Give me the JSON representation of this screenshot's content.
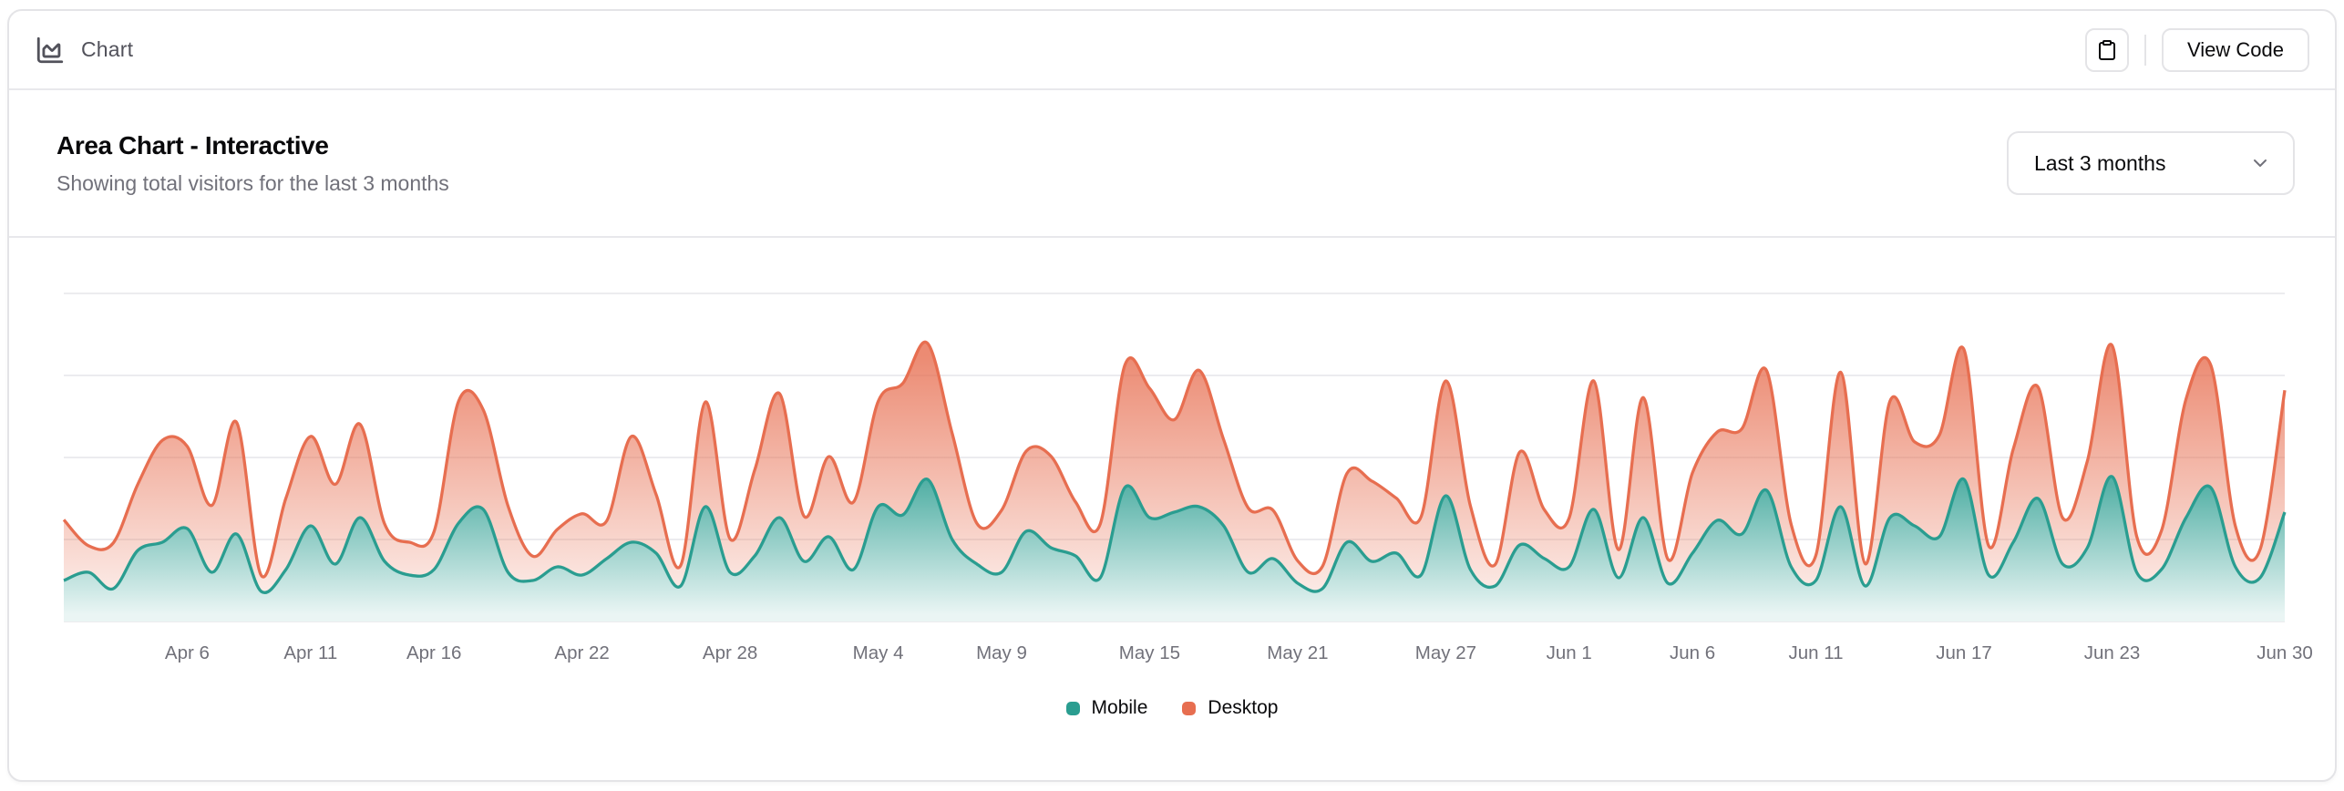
{
  "header": {
    "label": "Chart",
    "copy_button": "clipboard-icon",
    "view_code_label": "View Code"
  },
  "card": {
    "title": "Area Chart - Interactive",
    "description": "Showing total visitors for the last 3 months"
  },
  "controls": {
    "range_select_value": "Last 3 months"
  },
  "colors": {
    "mobile": "#2a9d90",
    "desktop": "#e76e50",
    "grid": "#ececef",
    "border": "#e4e4e7",
    "muted_text": "#71717a",
    "text": "#09090b"
  },
  "icons": [
    "chart-area-icon",
    "clipboard-icon",
    "chevron-down-icon"
  ],
  "chart_data": {
    "type": "area",
    "stacked": true,
    "title": "Area Chart - Interactive",
    "xlabel": "",
    "ylabel": "",
    "ylim": [
      0,
      1200
    ],
    "y_gridlines": [
      0,
      300,
      600,
      900,
      1200
    ],
    "grid": true,
    "legend_position": "bottom",
    "x": [
      "2024-04-01",
      "2024-04-02",
      "2024-04-03",
      "2024-04-04",
      "2024-04-05",
      "2024-04-06",
      "2024-04-07",
      "2024-04-08",
      "2024-04-09",
      "2024-04-10",
      "2024-04-11",
      "2024-04-12",
      "2024-04-13",
      "2024-04-14",
      "2024-04-15",
      "2024-04-16",
      "2024-04-17",
      "2024-04-18",
      "2024-04-19",
      "2024-04-20",
      "2024-04-21",
      "2024-04-22",
      "2024-04-23",
      "2024-04-24",
      "2024-04-25",
      "2024-04-26",
      "2024-04-27",
      "2024-04-28",
      "2024-04-29",
      "2024-04-30",
      "2024-05-01",
      "2024-05-02",
      "2024-05-03",
      "2024-05-04",
      "2024-05-05",
      "2024-05-06",
      "2024-05-07",
      "2024-05-08",
      "2024-05-09",
      "2024-05-10",
      "2024-05-11",
      "2024-05-12",
      "2024-05-13",
      "2024-05-14",
      "2024-05-15",
      "2024-05-16",
      "2024-05-17",
      "2024-05-18",
      "2024-05-19",
      "2024-05-20",
      "2024-05-21",
      "2024-05-22",
      "2024-05-23",
      "2024-05-24",
      "2024-05-25",
      "2024-05-26",
      "2024-05-27",
      "2024-05-28",
      "2024-05-29",
      "2024-05-30",
      "2024-05-31",
      "2024-06-01",
      "2024-06-02",
      "2024-06-03",
      "2024-06-04",
      "2024-06-05",
      "2024-06-06",
      "2024-06-07",
      "2024-06-08",
      "2024-06-09",
      "2024-06-10",
      "2024-06-11",
      "2024-06-12",
      "2024-06-13",
      "2024-06-14",
      "2024-06-15",
      "2024-06-16",
      "2024-06-17",
      "2024-06-18",
      "2024-06-19",
      "2024-06-20",
      "2024-06-21",
      "2024-06-22",
      "2024-06-23",
      "2024-06-24",
      "2024-06-25",
      "2024-06-26",
      "2024-06-27",
      "2024-06-28",
      "2024-06-29",
      "2024-06-30"
    ],
    "series": [
      {
        "name": "Mobile",
        "color": "#2a9d90",
        "values": [
          150,
          180,
          120,
          260,
          290,
          340,
          180,
          320,
          110,
          190,
          350,
          210,
          380,
          220,
          170,
          190,
          360,
          410,
          180,
          150,
          200,
          170,
          230,
          290,
          250,
          130,
          420,
          180,
          240,
          380,
          220,
          310,
          190,
          420,
          390,
          520,
          300,
          210,
          180,
          330,
          270,
          240,
          160,
          490,
          380,
          400,
          420,
          350,
          180,
          230,
          140,
          120,
          290,
          220,
          250,
          170,
          460,
          190,
          130,
          280,
          230,
          200,
          410,
          160,
          380,
          140,
          250,
          370,
          320,
          480,
          200,
          150,
          420,
          130,
          380,
          350,
          310,
          520,
          170,
          290,
          450,
          210,
          270,
          530,
          180,
          190,
          380,
          490,
          200,
          160,
          400
        ]
      },
      {
        "name": "Desktop",
        "color": "#e76e50",
        "values": [
          222,
          97,
          167,
          242,
          373,
          301,
          245,
          409,
          59,
          261,
          327,
          292,
          342,
          137,
          120,
          138,
          446,
          364,
          243,
          89,
          137,
          224,
          138,
          387,
          215,
          75,
          383,
          122,
          315,
          454,
          165,
          293,
          247,
          385,
          481,
          498,
          388,
          149,
          227,
          293,
          335,
          197,
          197,
          448,
          473,
          338,
          499,
          315,
          235,
          177,
          82,
          81,
          252,
          294,
          201,
          213,
          420,
          233,
          78,
          340,
          178,
          178,
          470,
          103,
          439,
          88,
          294,
          323,
          385,
          438,
          155,
          92,
          492,
          81,
          426,
          307,
          371,
          475,
          107,
          341,
          408,
          169,
          317,
          480,
          132,
          141,
          434,
          448,
          149,
          103,
          446
        ]
      }
    ],
    "x_ticks": [
      {
        "index": 5,
        "label": "Apr 6"
      },
      {
        "index": 10,
        "label": "Apr 11"
      },
      {
        "index": 15,
        "label": "Apr 16"
      },
      {
        "index": 21,
        "label": "Apr 22"
      },
      {
        "index": 27,
        "label": "Apr 28"
      },
      {
        "index": 33,
        "label": "May 4"
      },
      {
        "index": 38,
        "label": "May 9"
      },
      {
        "index": 44,
        "label": "May 15"
      },
      {
        "index": 50,
        "label": "May 21"
      },
      {
        "index": 56,
        "label": "May 27"
      },
      {
        "index": 61,
        "label": "Jun 1"
      },
      {
        "index": 66,
        "label": "Jun 6"
      },
      {
        "index": 71,
        "label": "Jun 11"
      },
      {
        "index": 77,
        "label": "Jun 17"
      },
      {
        "index": 83,
        "label": "Jun 23"
      },
      {
        "index": 90,
        "label": "Jun 30"
      }
    ]
  }
}
